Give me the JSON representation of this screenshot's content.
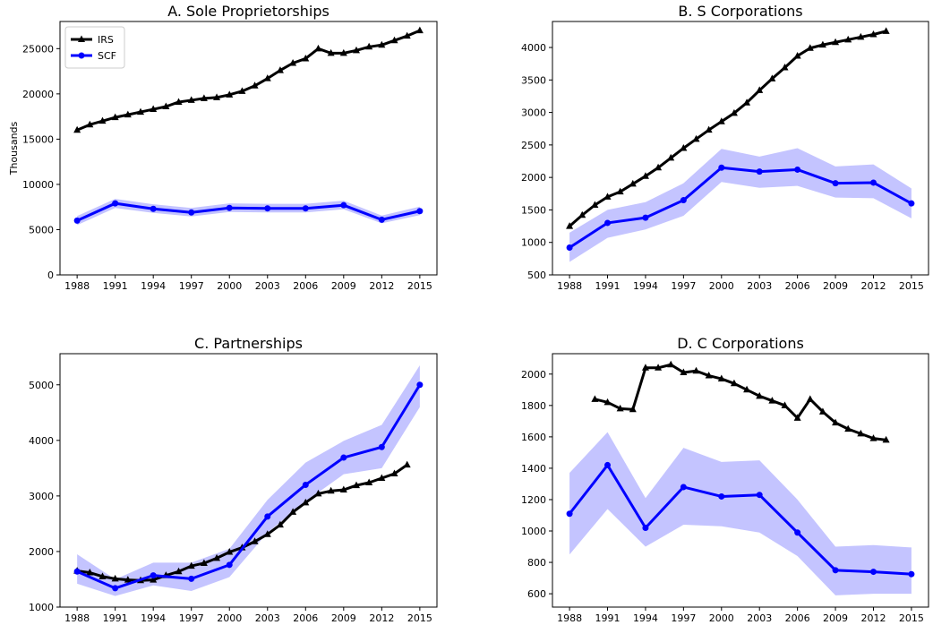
{
  "chart_data": [
    {
      "type": "line",
      "title": "A. Sole Proprietorships",
      "ylabel": "Thousands",
      "legend": "upper left",
      "xlim": [
        1986.65,
        2016.35
      ],
      "xticks": [
        1988,
        1991,
        1994,
        1997,
        2000,
        2003,
        2006,
        2009,
        2012,
        2015
      ],
      "ylim": [
        0,
        28000
      ],
      "yticks": [
        0,
        5000,
        10000,
        15000,
        20000,
        25000
      ],
      "series": [
        {
          "name": "IRS",
          "color": "#000000",
          "marker": "triangle",
          "x": [
            1988,
            1989,
            1990,
            1991,
            1992,
            1993,
            1994,
            1995,
            1996,
            1997,
            1998,
            1999,
            2000,
            2001,
            2002,
            2003,
            2004,
            2005,
            2006,
            2007,
            2008,
            2009,
            2010,
            2011,
            2012,
            2013,
            2014,
            2015
          ],
          "values": [
            16000,
            16600,
            17000,
            17400,
            17700,
            18000,
            18300,
            18600,
            19100,
            19300,
            19500,
            19600,
            19900,
            20300,
            20900,
            21700,
            22600,
            23400,
            23900,
            25000,
            24500,
            24500,
            24800,
            25200,
            25400,
            25900,
            26400,
            27000
          ]
        },
        {
          "name": "SCF",
          "color": "#0000ff",
          "marker": "circle",
          "band_color": "#c4c4ff",
          "x": [
            1988,
            1991,
            1994,
            1997,
            2000,
            2003,
            2006,
            2009,
            2012,
            2015
          ],
          "values": [
            6000,
            7900,
            7300,
            6900,
            7400,
            7350,
            7350,
            7700,
            6100,
            7050
          ],
          "lower": [
            5500,
            7400,
            6850,
            6450,
            6950,
            6900,
            6900,
            7250,
            5700,
            6600
          ],
          "upper": [
            6500,
            8400,
            7800,
            7400,
            7900,
            7850,
            7850,
            8200,
            6550,
            7550
          ]
        }
      ]
    },
    {
      "type": "line",
      "title": "B. S Corporations",
      "xlim": [
        1986.65,
        2016.35
      ],
      "xticks": [
        1988,
        1991,
        1994,
        1997,
        2000,
        2003,
        2006,
        2009,
        2012,
        2015
      ],
      "ylim": [
        500,
        4400
      ],
      "yticks": [
        500,
        1000,
        1500,
        2000,
        2500,
        3000,
        3500,
        4000
      ],
      "series": [
        {
          "color": "#000000",
          "marker": "triangle",
          "x": [
            1988,
            1989,
            1990,
            1991,
            1992,
            1993,
            1994,
            1995,
            1996,
            1997,
            1998,
            1999,
            2000,
            2001,
            2002,
            2003,
            2004,
            2005,
            2006,
            2007,
            2008,
            2009,
            2010,
            2011,
            2012,
            2013
          ],
          "values": [
            1250,
            1420,
            1575,
            1700,
            1780,
            1900,
            2020,
            2150,
            2300,
            2450,
            2590,
            2730,
            2860,
            2990,
            3150,
            3340,
            3520,
            3690,
            3870,
            3990,
            4040,
            4080,
            4120,
            4160,
            4200,
            4250
          ]
        },
        {
          "color": "#0000ff",
          "marker": "circle",
          "band_color": "#c4c4ff",
          "x": [
            1988,
            1991,
            1994,
            1997,
            2000,
            2003,
            2006,
            2009,
            2012,
            2015
          ],
          "values": [
            920,
            1300,
            1380,
            1650,
            2150,
            2090,
            2120,
            1910,
            1920,
            1600
          ],
          "lower": [
            700,
            1070,
            1200,
            1410,
            1930,
            1840,
            1870,
            1690,
            1680,
            1370
          ],
          "upper": [
            1150,
            1500,
            1620,
            1910,
            2440,
            2320,
            2450,
            2170,
            2200,
            1830
          ]
        }
      ]
    },
    {
      "type": "line",
      "title": "C. Partnerships",
      "xlim": [
        1986.65,
        2016.35
      ],
      "xticks": [
        1988,
        1991,
        1994,
        1997,
        2000,
        2003,
        2006,
        2009,
        2012,
        2015
      ],
      "ylim": [
        1000,
        5560
      ],
      "yticks": [
        1000,
        2000,
        3000,
        4000,
        5000
      ],
      "series": [
        {
          "color": "#000000",
          "marker": "triangle",
          "x": [
            1988,
            1989,
            1990,
            1991,
            1992,
            1993,
            1994,
            1995,
            1996,
            1997,
            1998,
            1999,
            2000,
            2001,
            2002,
            2003,
            2004,
            2005,
            2006,
            2007,
            2008,
            2009,
            2010,
            2011,
            2012,
            2013,
            2014
          ],
          "values": [
            1650,
            1620,
            1550,
            1510,
            1490,
            1480,
            1490,
            1570,
            1640,
            1740,
            1790,
            1880,
            1990,
            2070,
            2180,
            2310,
            2480,
            2710,
            2880,
            3040,
            3090,
            3110,
            3190,
            3240,
            3320,
            3400,
            3560
          ]
        },
        {
          "color": "#0000ff",
          "marker": "circle",
          "band_color": "#c4c4ff",
          "x": [
            1988,
            1991,
            1994,
            1997,
            2000,
            2003,
            2006,
            2009,
            2012,
            2015
          ],
          "values": [
            1640,
            1340,
            1570,
            1510,
            1760,
            2630,
            3200,
            3690,
            3880,
            5000
          ],
          "lower": [
            1420,
            1200,
            1390,
            1290,
            1540,
            2340,
            2900,
            3390,
            3500,
            4600
          ],
          "upper": [
            1950,
            1500,
            1800,
            1800,
            2050,
            2930,
            3600,
            3990,
            4280,
            5350
          ]
        }
      ]
    },
    {
      "type": "line",
      "title": "D. C Corporations",
      "xlim": [
        1986.65,
        2016.35
      ],
      "xticks": [
        1988,
        1991,
        1994,
        1997,
        2000,
        2003,
        2006,
        2009,
        2012,
        2015
      ],
      "ylim": [
        515,
        2130
      ],
      "yticks": [
        600,
        800,
        1000,
        1200,
        1400,
        1600,
        1800,
        2000
      ],
      "series": [
        {
          "color": "#000000",
          "marker": "triangle",
          "x": [
            1990,
            1991,
            1992,
            1993,
            1994,
            1995,
            1996,
            1997,
            1998,
            1999,
            2000,
            2001,
            2002,
            2003,
            2004,
            2005,
            2006,
            2007,
            2008,
            2009,
            2010,
            2011,
            2012,
            2013
          ],
          "values": [
            1840,
            1820,
            1780,
            1775,
            2040,
            2040,
            2060,
            2010,
            2020,
            1990,
            1970,
            1940,
            1900,
            1860,
            1830,
            1800,
            1720,
            1840,
            1760,
            1690,
            1650,
            1620,
            1590,
            1580
          ]
        },
        {
          "color": "#0000ff",
          "marker": "circle",
          "band_color": "#c4c4ff",
          "x": [
            1988,
            1991,
            1994,
            1997,
            2000,
            2003,
            2006,
            2009,
            2012,
            2015
          ],
          "values": [
            1110,
            1420,
            1020,
            1280,
            1220,
            1230,
            990,
            750,
            740,
            725
          ],
          "lower": [
            850,
            1140,
            900,
            1040,
            1030,
            990,
            840,
            590,
            600,
            600
          ],
          "upper": [
            1370,
            1630,
            1210,
            1530,
            1440,
            1450,
            1200,
            900,
            910,
            895
          ]
        }
      ]
    }
  ]
}
